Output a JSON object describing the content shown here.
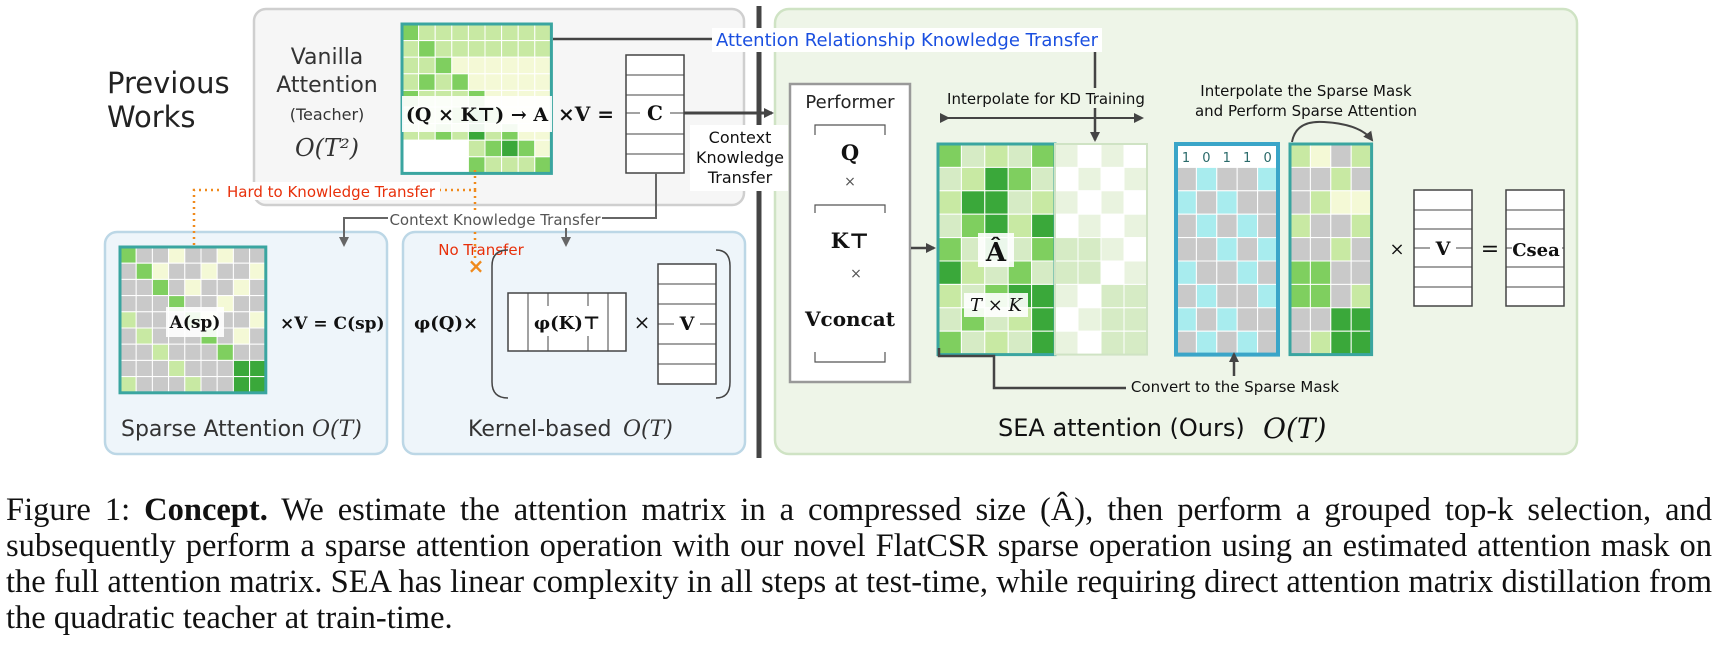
{
  "previous_works": "Previous Works",
  "teacher": {
    "title_line1": "Vanilla",
    "title_line2": "Attention",
    "subtitle": "(Teacher)",
    "complexity": "O(T²)",
    "expr": "(Q × K⊤) → A",
    "times_v": "×V =",
    "c_label": "C"
  },
  "arrows": {
    "attn_transfer": "Attention Relationship Knowledge Transfer",
    "context_transfer_line1": "Context",
    "context_transfer_line2": "Knowledge",
    "context_transfer_line3": "Transfer",
    "hard_transfer": "Hard to Knowledge Transfer",
    "context_transfer_small": "Context Knowledge Transfer",
    "no_transfer": "No Transfer",
    "no_transfer_mark": "×"
  },
  "sparse": {
    "matrix_label": "A(sp)",
    "expr": "×V = C(sp)",
    "title": "Sparse Attention",
    "complexity": "O(T)"
  },
  "kernel": {
    "phi_q": "φ(Q)×",
    "phi_k": "φ(K)⊤",
    "times": "×",
    "v": "V",
    "title": "Kernel-based",
    "complexity": "O(T)"
  },
  "sea": {
    "performer": "Performer",
    "q": "Q",
    "times1": "×",
    "k": "K⊤",
    "times2": "×",
    "v_concat": "Vconcat",
    "interp_kd": "Interpolate for KD Training",
    "interp_sparse_line1": "Interpolate the Sparse Mask",
    "interp_sparse_line2": "and Perform Sparse Attention",
    "a_hat": "Â",
    "txk": "T × K",
    "mask_bits": [
      "1",
      "0",
      "1",
      "1",
      "0"
    ],
    "times_v": "×",
    "v": "V",
    "equals": "=",
    "c_sea": "Csea",
    "convert": "Convert to the Sparse Mask",
    "title": "SEA attention (Ours)",
    "complexity": "O(T)"
  },
  "caption": {
    "prefix": "Figure 1: ",
    "bold": "Concept.",
    "text": " We estimate the attention matrix in a compressed size (Â), then perform a grouped top-k selection, and subsequently perform a sparse attention operation with our novel FlatCSR sparse operation using an estimated attention mask on the full attention matrix. SEA has linear complexity in all steps at test-time, while requiring direct attention matrix distillation from the quadratic teacher at train-time."
  },
  "colors": {
    "dark_green": "#3aa83a",
    "mid_green": "#7fcf5f",
    "light_green": "#c8e9a3",
    "pale_yellow": "#f4f9d6",
    "gray_cell": "#c9c9c9",
    "cyan_cell": "#a8ecee",
    "blue_label": "#1a4fe0",
    "red_label": "#e8300a",
    "orange_dot": "#f08a1c"
  }
}
